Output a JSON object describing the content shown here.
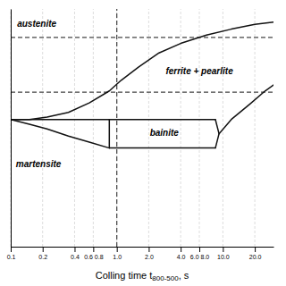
{
  "chart_data": {
    "type": "line",
    "log": "x",
    "xlim": [
      0.1,
      30.0
    ],
    "ylim": [
      0.0,
      1.0
    ],
    "xticks": [
      0.1,
      0.2,
      0.4,
      {
        "value": 0.6,
        "label": "0.6 0.8"
      },
      {
        "value": 1.0,
        "label": "1.0"
      },
      {
        "value": 2.0,
        "label": "2.0"
      },
      {
        "value": 4.0,
        "label": "4.0"
      },
      {
        "value": 6.0,
        "label": "6.0 8.0"
      },
      {
        "value": 10.0,
        "label": "10.0"
      },
      {
        "value": 20.0,
        "label": "20.0"
      }
    ],
    "yticks": [],
    "tick_labels": "x",
    "grid": true,
    "x_label": [
      "Colling time t",
      "800-500",
      ", s"
    ],
    "series": [
      {
        "color": "#111111",
        "x": [
          0.1,
          0.15,
          0.22,
          0.35,
          0.55,
          0.85,
          1.1,
          1.6,
          2.5,
          4.0,
          7.0,
          12.0,
          20.0,
          30.0
        ],
        "values": [
          0.535,
          0.535,
          0.545,
          0.565,
          0.605,
          0.655,
          0.7,
          0.755,
          0.815,
          0.855,
          0.89,
          0.915,
          0.935,
          0.945
        ]
      },
      {
        "color": "#111111",
        "x": [
          0.1,
          0.85
        ],
        "values": [
          0.535,
          0.535
        ]
      },
      {
        "color": "#111111",
        "x": [
          0.1,
          0.15,
          0.22,
          0.35,
          0.55,
          0.85
        ],
        "values": [
          0.535,
          0.515,
          0.495,
          0.465,
          0.44,
          0.415
        ]
      },
      {
        "color": "#111111",
        "x": [
          0.85,
          0.85
        ],
        "values": [
          0.415,
          0.535
        ]
      },
      {
        "color": "#111111",
        "x": [
          0.85,
          8.5
        ],
        "values": [
          0.535,
          0.535
        ]
      },
      {
        "color": "#111111",
        "x": [
          0.85,
          8.5
        ],
        "values": [
          0.415,
          0.415
        ]
      },
      {
        "color": "#111111",
        "x": [
          8.5,
          9.2,
          8.5
        ],
        "values": [
          0.535,
          0.475,
          0.415
        ]
      },
      {
        "color": "#111111",
        "x": [
          9.2,
          12.0,
          18.0,
          25.0,
          30.0
        ],
        "values": [
          0.475,
          0.535,
          0.6,
          0.655,
          0.68
        ]
      }
    ],
    "reference_lines": {
      "y": [
        0.88,
        0.65
      ],
      "x": [
        1.0
      ],
      "line_style": "dashed",
      "color": "#444444"
    },
    "annotations": [
      {
        "text": "austenite",
        "x": 0.115,
        "y": 0.935
      },
      {
        "text": "ferrite + pearlite",
        "x": 6.0,
        "y": 0.735
      },
      {
        "text": "bainite",
        "x": 2.8,
        "y": 0.476
      },
      {
        "text": "martensite",
        "x": 0.112,
        "y": 0.345
      }
    ]
  }
}
